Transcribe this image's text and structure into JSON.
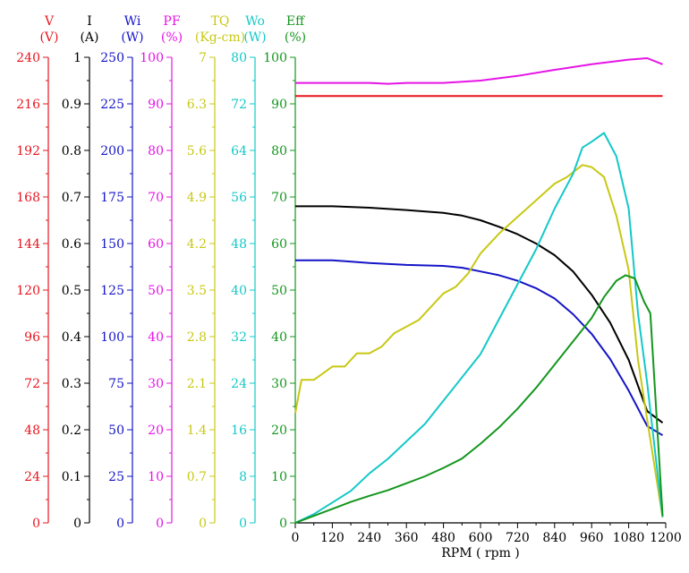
{
  "chart_data": {
    "type": "line",
    "xlabel": "RPM ( rpm )",
    "xlim": [
      0,
      1200
    ],
    "x_ticks": [
      "0",
      "120",
      "240",
      "360",
      "480",
      "600",
      "720",
      "840",
      "960",
      "1080",
      "1200"
    ],
    "axes": [
      {
        "key": "V",
        "name": "V",
        "unit": "(V)",
        "color": "#e8141e",
        "min": 0,
        "max": 240,
        "ticks": [
          "0",
          "24",
          "48",
          "72",
          "96",
          "120",
          "144",
          "168",
          "192",
          "216",
          "240"
        ]
      },
      {
        "key": "I",
        "name": "I",
        "unit": "(A)",
        "color": "#000000",
        "min": 0,
        "max": 1,
        "ticks": [
          "0",
          "0.1",
          "0.2",
          "0.3",
          "0.4",
          "0.5",
          "0.6",
          "0.7",
          "0.8",
          "0.9",
          "1"
        ]
      },
      {
        "key": "Wi",
        "name": "Wi",
        "unit": "(W)",
        "color": "#1414c8",
        "min": 0,
        "max": 250,
        "ticks": [
          "0",
          "25",
          "50",
          "75",
          "100",
          "125",
          "150",
          "175",
          "200",
          "225",
          "250"
        ]
      },
      {
        "key": "PF",
        "name": "PF",
        "unit": "(%)",
        "color": "#e614e6",
        "min": 0,
        "max": 100,
        "ticks": [
          "0",
          "10",
          "20",
          "30",
          "40",
          "50",
          "60",
          "70",
          "80",
          "90",
          "100"
        ]
      },
      {
        "key": "TQ",
        "name": "TQ",
        "unit": "(Kg-cm)",
        "color": "#c8c814",
        "min": 0,
        "max": 7,
        "ticks": [
          "0",
          "0.7",
          "1.4",
          "2.1",
          "2.8",
          "3.5",
          "4.2",
          "4.9",
          "5.6",
          "6.3",
          "7"
        ]
      },
      {
        "key": "Wo",
        "name": "Wo",
        "unit": "(W)",
        "color": "#14c8c8",
        "min": 0,
        "max": 80,
        "ticks": [
          "0",
          "8",
          "16",
          "24",
          "32",
          "40",
          "48",
          "56",
          "64",
          "72",
          "80"
        ]
      },
      {
        "key": "Eff",
        "name": "Eff",
        "unit": "(%)",
        "color": "#14961e",
        "min": 0,
        "max": 100,
        "ticks": [
          "0",
          "10",
          "20",
          "30",
          "40",
          "50",
          "60",
          "70",
          "80",
          "90",
          "100"
        ]
      }
    ],
    "series": [
      {
        "name": "PF",
        "axis": "PF",
        "color": "#e614e6",
        "x": [
          0,
          120,
          240,
          300,
          360,
          480,
          600,
          720,
          840,
          960,
          1080,
          1140,
          1190
        ],
        "y": [
          94.5,
          94.5,
          94.5,
          94.3,
          94.5,
          94.5,
          95.0,
          96.0,
          97.3,
          98.5,
          99.5,
          99.8,
          98.5
        ]
      },
      {
        "name": "V",
        "axis": "V",
        "color": "#e8141e",
        "x": [
          0,
          1190
        ],
        "y": [
          220,
          220
        ]
      },
      {
        "name": "I",
        "axis": "I",
        "color": "#000000",
        "x": [
          0,
          120,
          240,
          360,
          480,
          540,
          600,
          660,
          720,
          780,
          840,
          900,
          960,
          1020,
          1080,
          1140,
          1190
        ],
        "y": [
          0.68,
          0.68,
          0.677,
          0.672,
          0.666,
          0.66,
          0.65,
          0.636,
          0.62,
          0.6,
          0.575,
          0.54,
          0.49,
          0.43,
          0.35,
          0.24,
          0.215
        ]
      },
      {
        "name": "Wi",
        "axis": "Wi",
        "color": "#1414c8",
        "x": [
          0,
          120,
          240,
          360,
          480,
          540,
          600,
          660,
          720,
          780,
          840,
          900,
          960,
          1020,
          1080,
          1140,
          1190
        ],
        "y": [
          141,
          141,
          139.5,
          138.5,
          138,
          137,
          135,
          133,
          130,
          126,
          120.5,
          112,
          101.5,
          88,
          71,
          52,
          47
        ]
      },
      {
        "name": "TQ",
        "axis": "TQ",
        "color": "#c8c814",
        "x": [
          0,
          20,
          60,
          90,
          120,
          160,
          200,
          240,
          280,
          320,
          360,
          400,
          440,
          480,
          520,
          560,
          600,
          660,
          720,
          780,
          840,
          880,
          930,
          960,
          1000,
          1040,
          1080,
          1110,
          1140,
          1190
        ],
        "y": [
          1.65,
          2.15,
          2.15,
          2.25,
          2.35,
          2.35,
          2.55,
          2.55,
          2.65,
          2.85,
          2.95,
          3.05,
          3.25,
          3.45,
          3.55,
          3.75,
          4.05,
          4.35,
          4.6,
          4.85,
          5.1,
          5.2,
          5.38,
          5.35,
          5.2,
          4.62,
          3.8,
          2.45,
          1.55,
          0.08
        ]
      },
      {
        "name": "Wo",
        "axis": "Wo",
        "color": "#14c8c8",
        "x": [
          0,
          60,
          120,
          180,
          240,
          300,
          360,
          420,
          480,
          540,
          600,
          660,
          720,
          780,
          840,
          900,
          930,
          960,
          1000,
          1040,
          1080,
          1110,
          1140,
          1190
        ],
        "y": [
          0,
          1.5,
          3.5,
          5.5,
          8.5,
          11,
          14,
          17,
          21,
          25,
          29,
          35,
          41,
          47,
          54,
          60,
          64.5,
          65.5,
          67,
          63,
          54,
          36,
          24,
          1
        ]
      },
      {
        "name": "Eff",
        "axis": "Eff",
        "color": "#14961e",
        "x": [
          0,
          60,
          120,
          180,
          240,
          300,
          360,
          420,
          480,
          540,
          600,
          660,
          720,
          780,
          840,
          900,
          960,
          1000,
          1040,
          1070,
          1100,
          1130,
          1150,
          1190
        ],
        "y": [
          0,
          1.5,
          3,
          4.5,
          5.8,
          7,
          8.5,
          10,
          11.8,
          13.8,
          17,
          20.5,
          24.5,
          29,
          34,
          39,
          44,
          48.5,
          52,
          53.2,
          52.5,
          47.5,
          45,
          1.5
        ]
      }
    ]
  }
}
